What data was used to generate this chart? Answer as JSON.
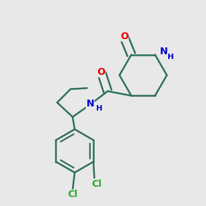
{
  "background_color": "#e8e8e8",
  "bond_color": "#2d6e5e",
  "bond_width": 1.8,
  "atom_colors": {
    "O": "#ee0000",
    "N": "#0000cc",
    "Cl": "#33aa33",
    "C": "#2d6e5e"
  },
  "font_size_large": 10,
  "font_size_small": 8,
  "xlim": [
    0.0,
    1.0
  ],
  "ylim": [
    0.0,
    1.0
  ]
}
